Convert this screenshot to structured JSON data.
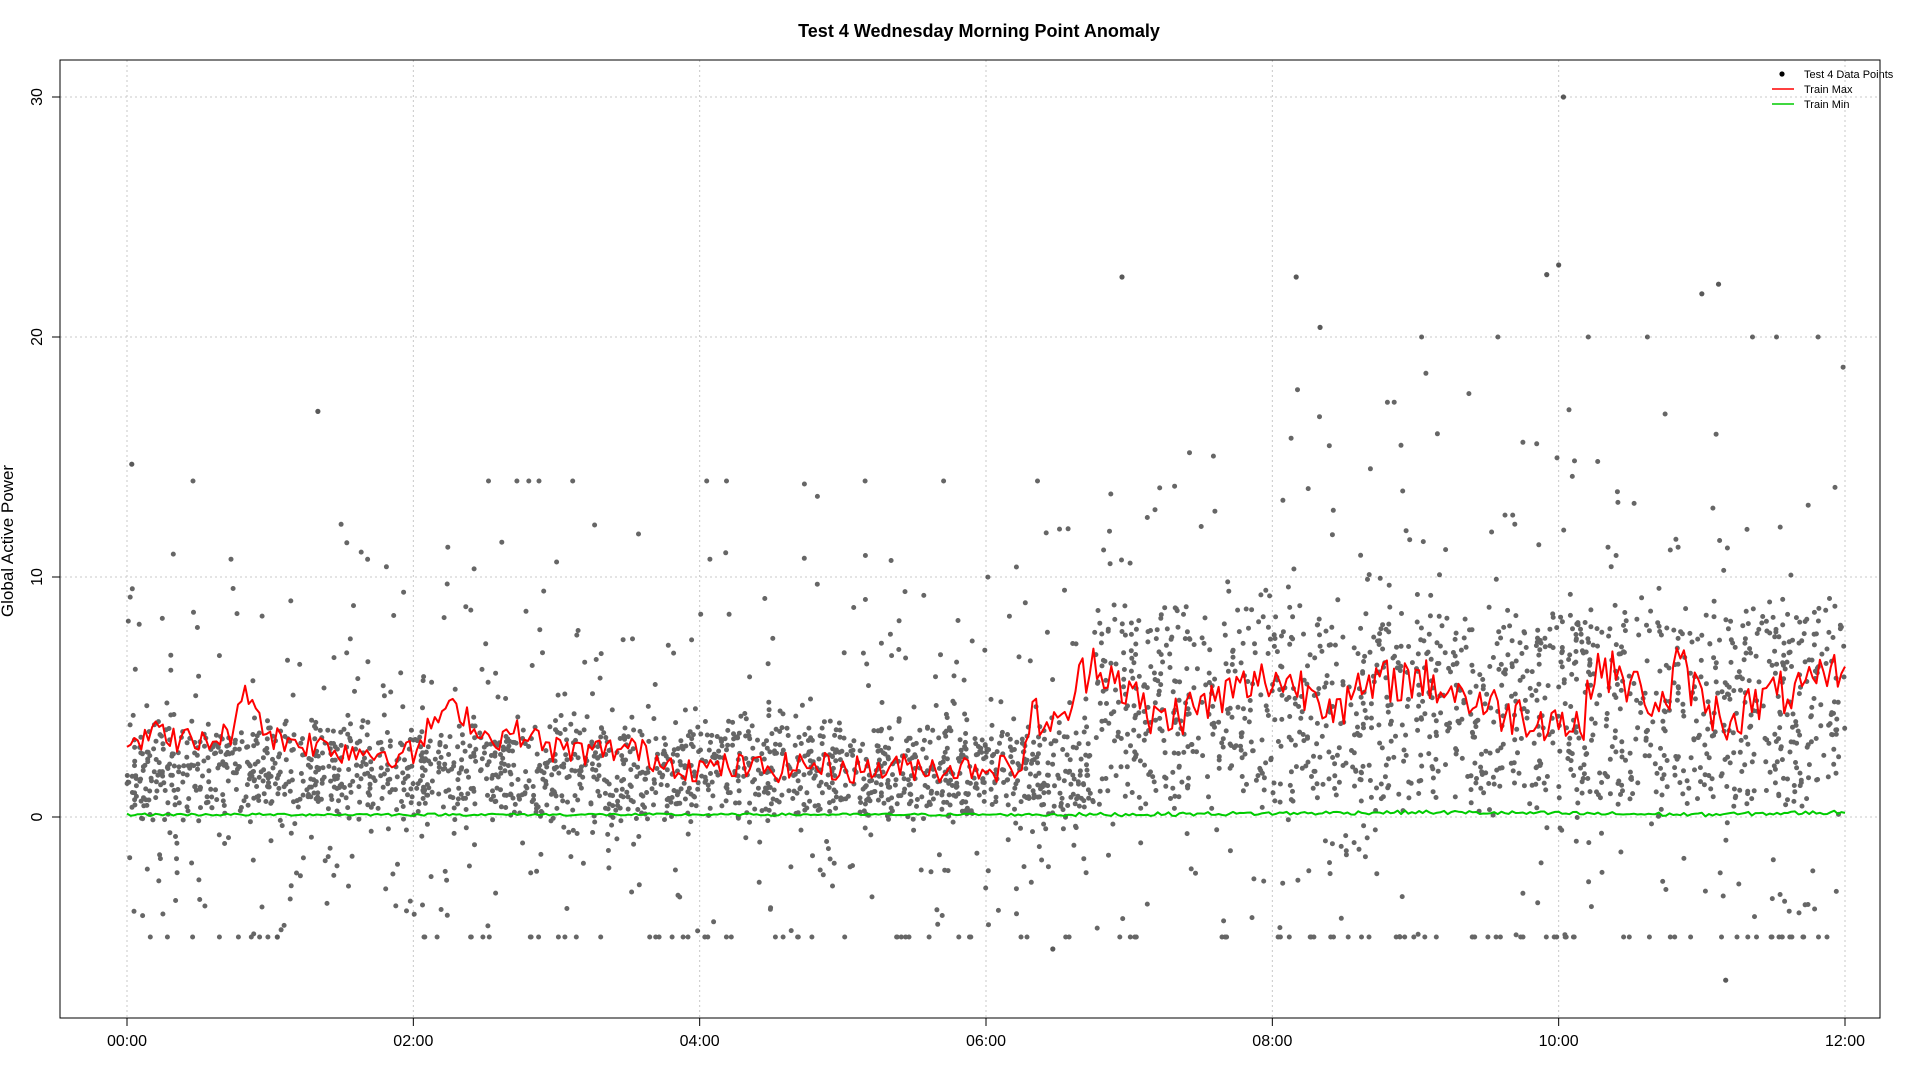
{
  "chart_data": {
    "type": "scatter",
    "title": "Test 4 Wednesday Morning Point Anomaly",
    "xlabel": "",
    "ylabel": "Global Active Power",
    "x_unit": "time (HH:MM)",
    "xlim": [
      "00:00",
      "12:00"
    ],
    "ylim": [
      -8,
      32
    ],
    "x_ticks": [
      "00:00",
      "02:00",
      "04:00",
      "06:00",
      "08:00",
      "10:00",
      "12:00"
    ],
    "y_ticks": [
      0,
      10,
      20,
      30
    ],
    "x_grid": [
      "00:00",
      "02:00",
      "04:00",
      "06:00",
      "08:00",
      "10:00",
      "12:00"
    ],
    "grid": true,
    "legend_position": "top-right",
    "series": [
      {
        "name": "Test 4 Data Points",
        "kind": "points",
        "color": "#000000",
        "description_bands": [
          {
            "from": "00:00",
            "to": "06:45",
            "dense_low": 0.3,
            "dense_high": 3.5,
            "sparse_high": 14
          },
          {
            "from": "06:45",
            "to": "12:00",
            "dense_low": 0.5,
            "dense_high": 8.5,
            "sparse_high": 20
          }
        ],
        "outliers": [
          {
            "x": "00:02",
            "y": 14.7
          },
          {
            "x": "01:20",
            "y": 16.9
          },
          {
            "x": "01:03",
            "y": -5.0
          },
          {
            "x": "06:57",
            "y": 22.5
          },
          {
            "x": "08:10",
            "y": 22.5
          },
          {
            "x": "08:20",
            "y": 20.4
          },
          {
            "x": "09:55",
            "y": 22.6
          },
          {
            "x": "10:00",
            "y": 23.0
          },
          {
            "x": "10:02",
            "y": 30.0
          },
          {
            "x": "11:00",
            "y": 21.8
          },
          {
            "x": "11:07",
            "y": 22.2
          },
          {
            "x": "11:10",
            "y": -6.8
          },
          {
            "x": "06:28",
            "y": -5.5
          }
        ]
      },
      {
        "name": "Train Max",
        "kind": "line",
        "color": "#ff0000",
        "x": [
          "00:00",
          "00:15",
          "00:30",
          "00:45",
          "00:50",
          "01:00",
          "01:15",
          "01:30",
          "01:45",
          "02:00",
          "02:10",
          "02:20",
          "02:30",
          "02:45",
          "03:00",
          "03:15",
          "03:30",
          "03:45",
          "04:00",
          "04:15",
          "04:30",
          "04:45",
          "05:00",
          "05:15",
          "05:30",
          "05:45",
          "06:00",
          "06:10",
          "06:15",
          "06:20",
          "06:30",
          "06:40",
          "06:45",
          "06:55",
          "07:10",
          "07:30",
          "07:45",
          "08:00",
          "08:10",
          "08:30",
          "08:45",
          "09:00",
          "09:15",
          "09:30",
          "09:45",
          "10:00",
          "10:10",
          "10:15",
          "10:30",
          "10:45",
          "10:50",
          "11:00",
          "11:10",
          "11:20",
          "11:30",
          "11:45",
          "12:00"
        ],
        "values": [
          3.2,
          3.5,
          3.0,
          3.6,
          5.5,
          3.3,
          3.1,
          2.8,
          2.7,
          2.6,
          4.2,
          4.5,
          3.3,
          3.5,
          2.8,
          2.7,
          2.9,
          2.3,
          2.0,
          2.1,
          2.0,
          2.2,
          2.0,
          2.0,
          2.1,
          2.0,
          2.1,
          2.0,
          2.2,
          4.5,
          3.5,
          5.8,
          6.6,
          5.8,
          4.0,
          4.6,
          5.3,
          5.8,
          5.5,
          4.7,
          5.6,
          5.8,
          5.3,
          4.6,
          4.2,
          4.1,
          3.6,
          6.5,
          5.5,
          4.5,
          6.5,
          4.8,
          4.0,
          4.6,
          5.1,
          5.3,
          6.3
        ]
      },
      {
        "name": "Train Min",
        "kind": "line",
        "color": "#00cc00",
        "x": [
          "00:00",
          "02:00",
          "04:00",
          "06:00",
          "06:45",
          "08:00",
          "09:00",
          "10:00",
          "11:00",
          "12:00"
        ],
        "values": [
          0.1,
          0.1,
          0.1,
          0.1,
          0.1,
          0.15,
          0.2,
          0.15,
          0.1,
          0.2
        ]
      }
    ]
  }
}
